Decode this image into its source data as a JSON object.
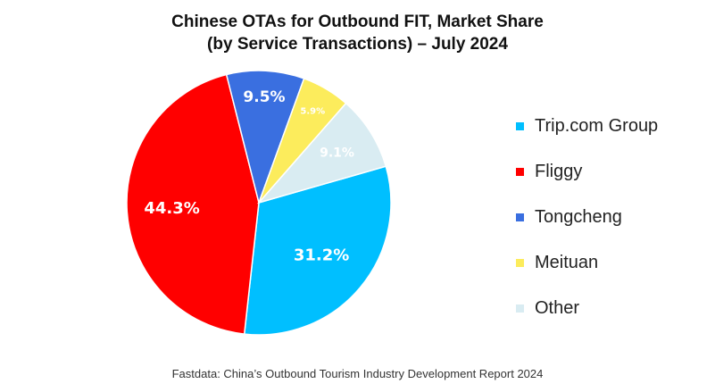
{
  "chart_data": {
    "type": "pie",
    "title_line1": "Chinese OTAs for Outbound FIT, Market Share",
    "title_line2": "(by Service Transactions) – July 2024",
    "slices": [
      {
        "name": "Trip.com Group",
        "value": 31.2,
        "label": "31.2%",
        "color": "#00bfff"
      },
      {
        "name": "Fliggy",
        "value": 44.3,
        "label": "44.3%",
        "color": "#ff0000"
      },
      {
        "name": "Tongcheng",
        "value": 9.5,
        "label": "9.5%",
        "color": "#3a6fe0"
      },
      {
        "name": "Meituan",
        "value": 5.9,
        "label": "5.9%",
        "color": "#fcec5c"
      },
      {
        "name": "Other",
        "value": 9.1,
        "label": "9.1%",
        "color": "#d9ecf2"
      }
    ],
    "legend": [
      "Trip.com Group",
      "Fliggy",
      "Tongcheng",
      "Meituan",
      "Other"
    ],
    "legend_position": "right"
  },
  "source_note": "Fastdata: China’s Outbound Tourism Industry Development Report 2024"
}
